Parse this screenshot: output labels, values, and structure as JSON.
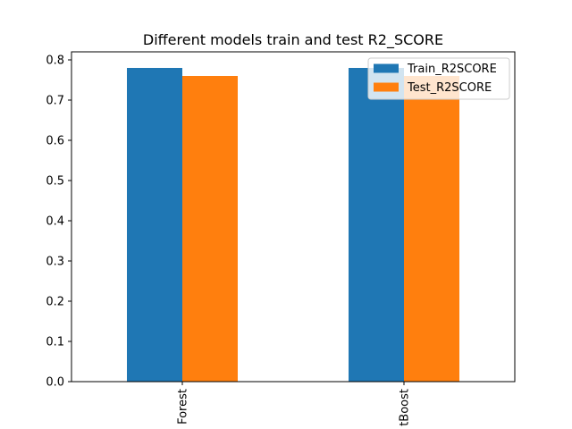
{
  "chart_data": {
    "type": "bar",
    "title": "Different models train and test R2_SCORE",
    "xlabel": "",
    "ylabel": "",
    "categories": [
      "Forest",
      "tBoost"
    ],
    "series": [
      {
        "name": "Train_R2SCORE",
        "color": "#1f77b4",
        "values": [
          0.78,
          0.78
        ]
      },
      {
        "name": "Test_R2SCORE",
        "color": "#ff7f0e",
        "values": [
          0.76,
          0.76
        ]
      }
    ],
    "ylim": [
      0,
      0.82
    ],
    "yticks": [
      "0.0",
      "0.1",
      "0.2",
      "0.3",
      "0.4",
      "0.5",
      "0.6",
      "0.7",
      "0.8"
    ],
    "legend_position": "top-right",
    "grid": false
  }
}
